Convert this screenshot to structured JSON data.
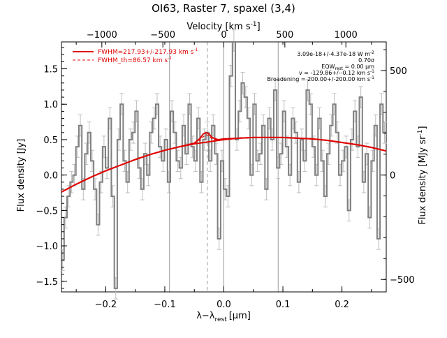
{
  "chart_data": {
    "type": "line",
    "title": "OI63, Raster 7, spaxel (3,4)",
    "xlabel": "λ−λ",
    "xlabel_sub": "rest",
    "xlabel_unit": "[μm]",
    "ylabel": "Flux density [Jy]",
    "ylabel_right": "Flux density [MJy sr",
    "ylabel_right_sup": "-1",
    "ylabel_right_end": "]",
    "xlabel_top": "Velocity [km s",
    "xlabel_top_sup": "-1",
    "xlabel_top_end": "]",
    "xlim": [
      -0.275,
      0.275
    ],
    "ylim": [
      -1.65,
      1.88
    ],
    "xticks": [
      -0.2,
      -0.1,
      0.0,
      0.1,
      0.2
    ],
    "xtick_labels": [
      "−0.2",
      "−0.1",
      "0.0",
      "0.1",
      "0.2"
    ],
    "yticks": [
      -1.5,
      -1.0,
      -0.5,
      0.0,
      0.5,
      1.0,
      1.5
    ],
    "ytick_labels": [
      "−1.5",
      "−1.0",
      "−0.5",
      "0.0",
      "0.5",
      "1.0",
      "1.5"
    ],
    "top_axis": {
      "label": "Velocity [km s-1]",
      "km_s_per_um": 4840,
      "ticks": [
        -1000,
        -500,
        0,
        500,
        1000
      ],
      "tick_labels": [
        "−1000",
        "−500",
        "0",
        "500",
        "1000"
      ]
    },
    "right_axis": {
      "label": "Flux density [MJy sr-1]",
      "mjy_per_jy": 339,
      "ticks": [
        -500,
        0,
        500
      ],
      "tick_labels": [
        "−500",
        "0",
        "500"
      ]
    },
    "vlines_solid": [
      -0.092,
      0.0,
      0.092
    ],
    "vline_dashed": -0.028,
    "legend": {
      "placement": "top-left",
      "entries": [
        {
          "label": "FWHM=217.93+/-217.93 km s",
          "sup": "-1",
          "style": "solid",
          "color": "#e00000"
        },
        {
          "label": "FWHM_th=86.57 km s",
          "sup": "-1",
          "style": "dashed",
          "color": "#e00000"
        }
      ]
    },
    "annotations": [
      {
        "text": "3.09e-18+/-4.37e-18 W m",
        "sup": "-2"
      },
      {
        "text": "0.70σ"
      },
      {
        "text": "EQW",
        "sub": "rest",
        "tail": " = 0.00 μm"
      },
      {
        "text": "v = -129.86+/--0.12 km s",
        "sup": "-1"
      },
      {
        "text": "Broadening = 200.00+/-200.00 km s",
        "sup": "-1"
      }
    ],
    "series": [
      {
        "name": "spectrum",
        "style": "step",
        "color": "#808080",
        "error": 0.15,
        "x": [
          -0.273,
          -0.268,
          -0.263,
          -0.258,
          -0.253,
          -0.248,
          -0.243,
          -0.238,
          -0.233,
          -0.228,
          -0.223,
          -0.218,
          -0.213,
          -0.208,
          -0.203,
          -0.198,
          -0.193,
          -0.188,
          -0.183,
          -0.178,
          -0.173,
          -0.168,
          -0.163,
          -0.158,
          -0.153,
          -0.148,
          -0.143,
          -0.138,
          -0.133,
          -0.128,
          -0.123,
          -0.118,
          -0.113,
          -0.108,
          -0.103,
          -0.098,
          -0.093,
          -0.088,
          -0.083,
          -0.078,
          -0.073,
          -0.068,
          -0.063,
          -0.058,
          -0.053,
          -0.048,
          -0.043,
          -0.038,
          -0.033,
          -0.028,
          -0.023,
          -0.018,
          -0.013,
          -0.008,
          -0.003,
          0.002,
          0.007,
          0.012,
          0.017,
          0.022,
          0.027,
          0.032,
          0.037,
          0.042,
          0.047,
          0.052,
          0.057,
          0.062,
          0.067,
          0.072,
          0.077,
          0.082,
          0.087,
          0.092,
          0.097,
          0.102,
          0.107,
          0.112,
          0.117,
          0.122,
          0.127,
          0.132,
          0.137,
          0.142,
          0.147,
          0.152,
          0.157,
          0.162,
          0.167,
          0.172,
          0.177,
          0.182,
          0.187,
          0.192,
          0.197,
          0.202,
          0.207,
          0.212,
          0.217,
          0.222,
          0.227,
          0.232,
          0.237,
          0.242,
          0.247,
          0.252,
          0.257,
          0.262,
          0.267,
          0.272
        ],
        "y": [
          -1.2,
          -0.6,
          -0.3,
          -0.1,
          0.0,
          0.4,
          0.7,
          -0.2,
          0.3,
          0.6,
          0.2,
          -0.2,
          -0.7,
          -0.1,
          0.4,
          0.1,
          0.8,
          -0.3,
          -1.6,
          0.5,
          1.0,
          0.2,
          -0.1,
          0.5,
          0.6,
          0.9,
          0.1,
          -0.2,
          0.3,
          0.0,
          0.6,
          0.8,
          1.0,
          0.4,
          0.2,
          0.5,
          -0.1,
          0.9,
          0.6,
          0.2,
          0.1,
          0.7,
          0.3,
          1.0,
          0.4,
          0.2,
          0.8,
          -0.1,
          0.5,
          0.6,
          0.2,
          0.7,
          0.3,
          -0.9,
          0.2,
          -0.2,
          -0.3,
          1.4,
          1.9,
          0.5,
          0.9,
          1.3,
          1.1,
          0.8,
          0.0,
          1.0,
          0.2,
          0.3,
          0.7,
          -0.2,
          0.8,
          0.5,
          1.2,
          0.1,
          0.3,
          0.9,
          0.4,
          0.0,
          0.8,
          0.6,
          -0.1,
          0.5,
          0.2,
          1.2,
          1.0,
          0.4,
          0.0,
          0.8,
          0.2,
          -0.3,
          0.3,
          0.7,
          1.0,
          0.6,
          0.0,
          0.2,
          0.4,
          -0.5,
          0.5,
          0.9,
          0.4,
          1.1,
          -0.1,
          0.3,
          -0.6,
          0.2,
          0.7,
          -0.9,
          1.0,
          0.6
        ]
      },
      {
        "name": "FWHM=217.93+/-217.93 km s-1",
        "style": "solid",
        "color": "#e00000",
        "x": [
          -0.275,
          -0.25,
          -0.225,
          -0.2,
          -0.175,
          -0.15,
          -0.125,
          -0.1,
          -0.075,
          -0.05,
          -0.04,
          -0.035,
          -0.03,
          -0.025,
          -0.02,
          -0.01,
          0.0,
          0.025,
          0.05,
          0.075,
          0.1,
          0.125,
          0.15,
          0.175,
          0.2,
          0.225,
          0.25,
          0.275
        ],
        "y": [
          -0.24,
          -0.13,
          -0.03,
          0.06,
          0.14,
          0.22,
          0.29,
          0.35,
          0.4,
          0.45,
          0.52,
          0.58,
          0.6,
          0.58,
          0.53,
          0.5,
          0.51,
          0.52,
          0.53,
          0.53,
          0.53,
          0.52,
          0.51,
          0.49,
          0.46,
          0.43,
          0.39,
          0.34
        ]
      },
      {
        "name": "FWHM_th=86.57 km s-1",
        "style": "dashed",
        "color": "#e00000",
        "x": [
          -0.05,
          -0.04,
          -0.035,
          -0.03,
          -0.025,
          -0.02,
          -0.01
        ],
        "y": [
          0.45,
          0.49,
          0.54,
          0.57,
          0.55,
          0.51,
          0.49
        ]
      },
      {
        "name": "continuum",
        "style": "solid",
        "color": "#e00000",
        "x": [
          -0.275,
          -0.25,
          -0.225,
          -0.2,
          -0.175,
          -0.15,
          -0.125,
          -0.1,
          -0.075,
          -0.05,
          -0.025,
          0.0,
          0.025,
          0.05,
          0.075,
          0.1,
          0.125,
          0.15,
          0.175,
          0.2,
          0.225,
          0.25,
          0.275
        ],
        "y": [
          -0.24,
          -0.13,
          -0.03,
          0.06,
          0.14,
          0.22,
          0.29,
          0.35,
          0.4,
          0.44,
          0.47,
          0.5,
          0.52,
          0.53,
          0.53,
          0.53,
          0.52,
          0.51,
          0.49,
          0.46,
          0.43,
          0.39,
          0.34
        ]
      }
    ]
  }
}
